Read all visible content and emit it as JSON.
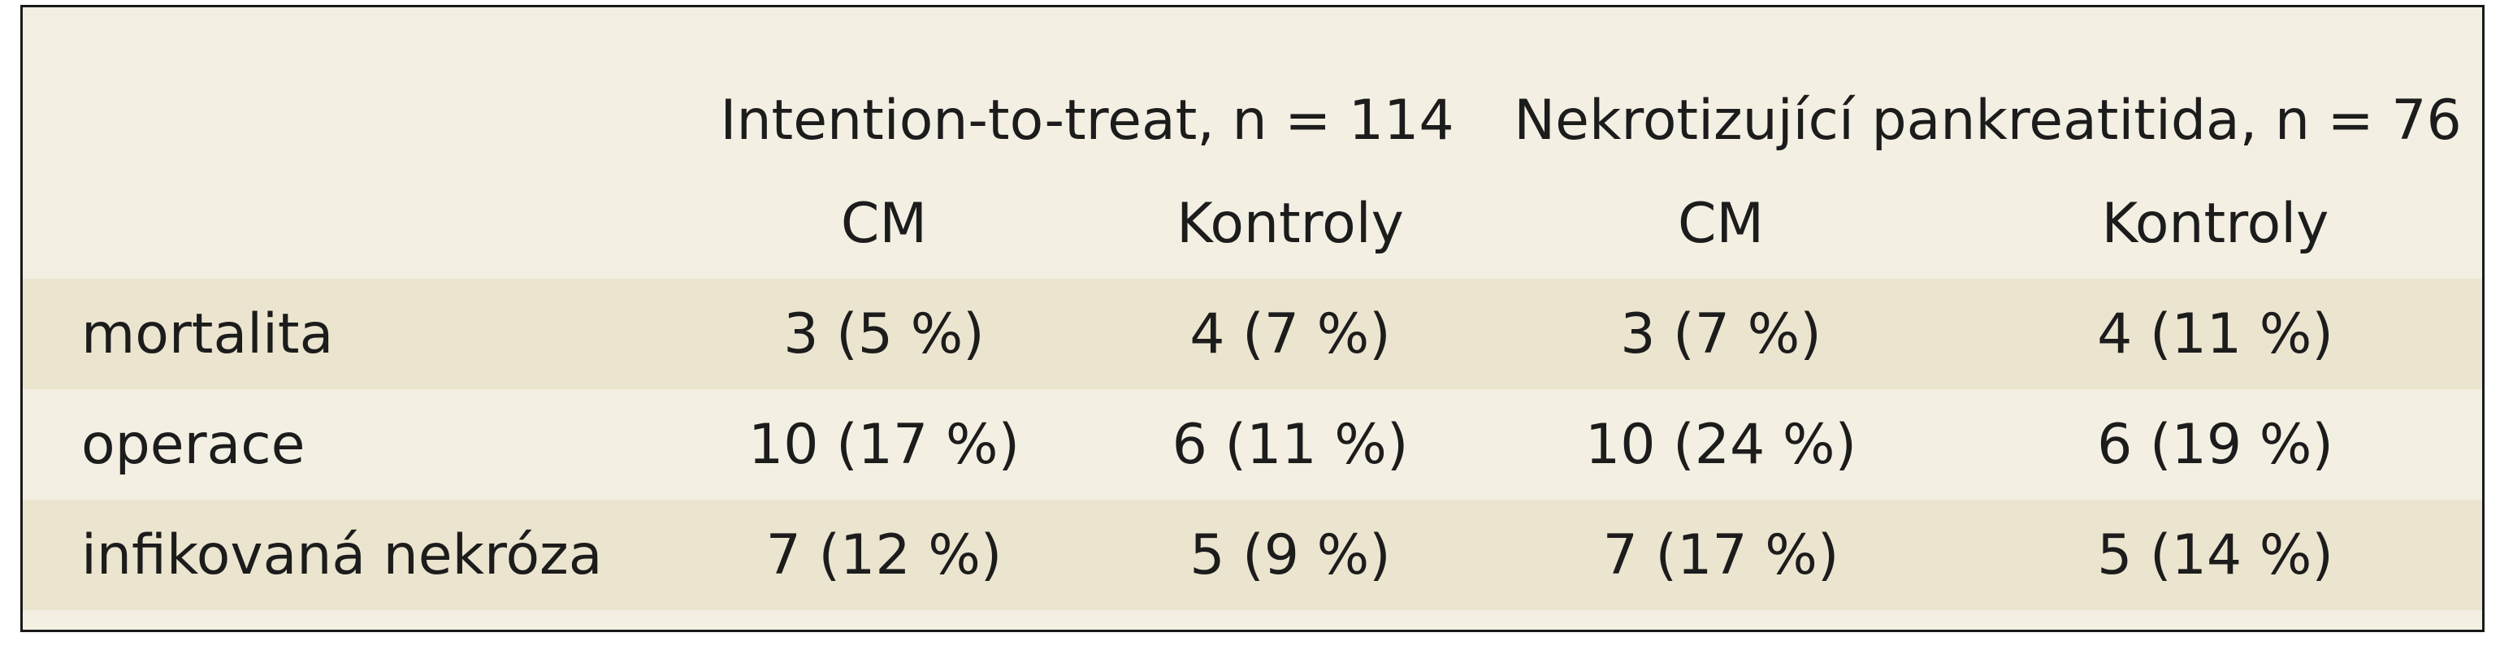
{
  "table": {
    "stub_header": "",
    "groups": [
      {
        "label": "Intention-to-treat, n = 114"
      },
      {
        "label": "Nekrotizující pankreatitida, n = 76"
      }
    ],
    "subheaders": [
      "CM",
      "Kontroly",
      "CM",
      "Kontroly"
    ],
    "rows": [
      {
        "label": "mortalita",
        "cells": [
          "3 (5 %)",
          "4 (7 %)",
          "3 (7 %)",
          "4 (11 %)"
        ]
      },
      {
        "label": "operace",
        "cells": [
          "10 (17 %)",
          "6 (11 %)",
          "10 (24 %)",
          "6 (19 %)"
        ]
      },
      {
        "label": "infikovaná nekróza",
        "cells": [
          "7 (12 %)",
          "5 (9 %)",
          "7 (17 %)",
          "5 (14 %)"
        ]
      }
    ]
  },
  "colors": {
    "background": "#f3efe2",
    "row_shade": "#ebe5cf",
    "border": "#1a1a1a",
    "text": "#1c1c1c"
  }
}
